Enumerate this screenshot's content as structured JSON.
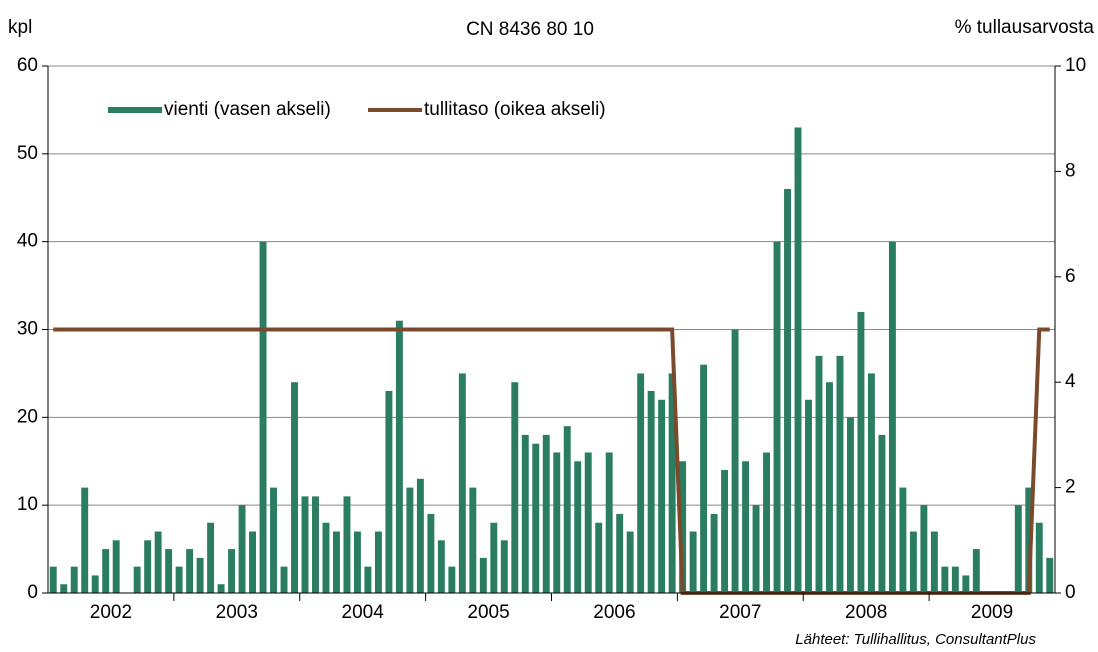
{
  "chart_data": {
    "type": "bar",
    "title": "CN 8436 80 10",
    "y_label": "kpl",
    "y2_label": "% tullausarvosta",
    "source": "Lähteet: Tullihallitus,  ConsultantPlus",
    "categories": [
      null,
      null,
      null,
      null,
      null,
      null,
      null,
      null,
      null,
      null,
      null,
      null,
      null,
      null,
      null,
      null,
      null,
      null,
      null,
      null,
      null,
      null,
      null,
      null,
      null,
      null,
      null,
      null,
      null,
      null,
      null,
      null,
      null,
      null,
      null,
      null,
      null,
      null,
      null,
      null,
      null,
      null,
      null,
      null,
      null,
      null,
      null,
      null,
      null,
      null,
      null,
      null,
      null,
      null,
      null,
      null,
      null,
      null,
      null,
      null,
      null,
      null,
      null,
      null,
      null,
      null,
      null,
      null,
      null,
      null,
      null,
      null,
      null,
      null,
      null,
      null,
      null,
      null,
      null,
      null,
      null,
      null,
      null,
      null,
      null,
      null,
      null,
      null,
      null,
      null,
      null,
      null,
      null,
      null,
      null,
      null
    ],
    "year_labels": [
      "2002",
      "2003",
      "2004",
      "2005",
      "2006",
      "2007",
      "2008",
      "2009"
    ],
    "series": [
      {
        "name": "vienti (vasen akseli)",
        "type": "bar",
        "color": "#2b7d62",
        "values": [
          3,
          1,
          3,
          12,
          2,
          5,
          6,
          0,
          3,
          6,
          7,
          5,
          3,
          5,
          4,
          8,
          1,
          5,
          10,
          7,
          40,
          12,
          3,
          24,
          11,
          11,
          8,
          7,
          11,
          7,
          3,
          7,
          23,
          31,
          12,
          13,
          9,
          6,
          3,
          25,
          12,
          4,
          8,
          6,
          24,
          18,
          17,
          18,
          16,
          19,
          15,
          16,
          8,
          16,
          9,
          7,
          25,
          23,
          22,
          25,
          15,
          7,
          26,
          9,
          14,
          30,
          15,
          10,
          16,
          40,
          46,
          53,
          22,
          27,
          24,
          27,
          20,
          32,
          25,
          18,
          40,
          12,
          7,
          10,
          7,
          3,
          3,
          2,
          5,
          0,
          0,
          0,
          10,
          12,
          8,
          4
        ]
      },
      {
        "name": "tullitaso (oikea akseli)",
        "type": "line",
        "axis": "y2",
        "color": "#7b4a2d",
        "values": [
          5,
          5,
          5,
          5,
          5,
          5,
          5,
          5,
          5,
          5,
          5,
          5,
          5,
          5,
          5,
          5,
          5,
          5,
          5,
          5,
          5,
          5,
          5,
          5,
          5,
          5,
          5,
          5,
          5,
          5,
          5,
          5,
          5,
          5,
          5,
          5,
          5,
          5,
          5,
          5,
          5,
          5,
          5,
          5,
          5,
          5,
          5,
          5,
          5,
          5,
          5,
          5,
          5,
          5,
          5,
          5,
          5,
          5,
          5,
          5,
          0,
          0,
          0,
          0,
          0,
          0,
          0,
          0,
          0,
          0,
          0,
          0,
          0,
          0,
          0,
          0,
          0,
          0,
          0,
          0,
          0,
          0,
          0,
          0,
          0,
          0,
          0,
          0,
          0,
          0,
          0,
          0,
          0,
          0,
          5,
          5
        ]
      }
    ],
    "ylim": [
      0,
      60
    ],
    "yticks": [
      0,
      10,
      20,
      30,
      40,
      50,
      60
    ],
    "y2lim": [
      0,
      10
    ],
    "y2ticks": [
      0,
      2,
      4,
      6,
      8,
      10
    ],
    "grid": true
  }
}
